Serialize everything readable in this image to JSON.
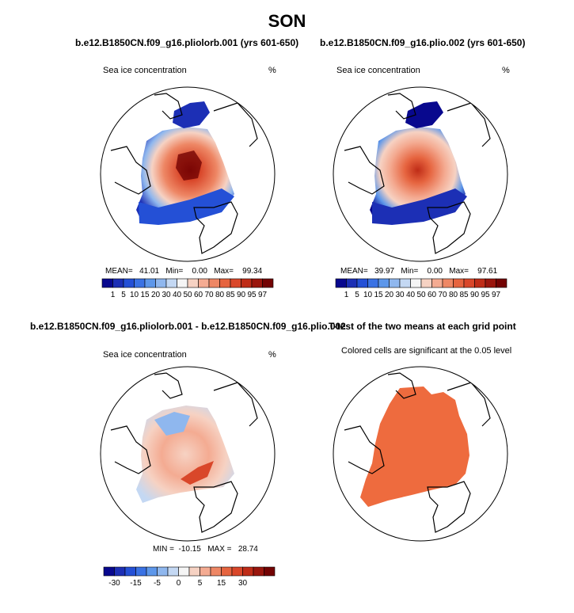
{
  "figure": {
    "season_title": "SON",
    "panels": [
      {
        "title": "b.e12.B1850CN.f09_g16.pliolorb.001 (yrs 601-650)",
        "variable": "Sea ice concentration",
        "units": "%",
        "stats": "MEAN=   41.01   Min=    0.00   Max=    99.34",
        "colorbar_labels": [
          "1",
          "5",
          "10",
          "15",
          "20",
          "30",
          "40",
          "50",
          "60",
          "70",
          "80",
          "85",
          "90",
          "95",
          "97"
        ],
        "colorbar_colors": [
          "#08088e",
          "#1c2fb5",
          "#2450d6",
          "#3a72e4",
          "#5d97ea",
          "#8fb7ee",
          "#c4d8f3",
          "#f5f5f5",
          "#f6d2c3",
          "#f4ab92",
          "#ee8765",
          "#e6643f",
          "#d9472a",
          "#bf2c17",
          "#9a160d",
          "#730303"
        ]
      },
      {
        "title": "b.e12.B1850CN.f09_g16.plio.002 (yrs 601-650)",
        "variable": "Sea ice concentration",
        "units": "%",
        "stats": "MEAN=   39.97   Min=    0.00   Max=    97.61",
        "colorbar_labels": [
          "1",
          "5",
          "10",
          "15",
          "20",
          "30",
          "40",
          "50",
          "60",
          "70",
          "80",
          "85",
          "90",
          "95",
          "97"
        ],
        "colorbar_colors": [
          "#08088e",
          "#1c2fb5",
          "#2450d6",
          "#3a72e4",
          "#5d97ea",
          "#8fb7ee",
          "#c4d8f3",
          "#f5f5f5",
          "#f6d2c3",
          "#f4ab92",
          "#ee8765",
          "#e6643f",
          "#d9472a",
          "#bf2c17",
          "#9a160d",
          "#730303"
        ]
      },
      {
        "title": "b.e12.B1850CN.f09_g16.pliolorb.001 - b.e12.B1850CN.f09_g16.plio.002",
        "variable": "Sea ice concentration",
        "units": "%",
        "stats": "MIN =  -10.15   MAX =   28.74",
        "colorbar_labels": [
          "-30",
          "-15",
          "-5",
          "0",
          "5",
          "15",
          "30"
        ],
        "colorbar_label_slots": [
          1,
          3,
          5,
          7,
          9,
          11,
          13
        ],
        "colorbar_colors": [
          "#08088e",
          "#1c2fb5",
          "#2450d6",
          "#3a72e4",
          "#5d97ea",
          "#8fb7ee",
          "#c4d8f3",
          "#f5f5f5",
          "#f6d2c3",
          "#f4ab92",
          "#ee8765",
          "#e6643f",
          "#d9472a",
          "#bf2c17",
          "#9a160d",
          "#730303"
        ]
      },
      {
        "title": "T-test of the two means at each grid point",
        "subtitle": "Colored cells are significant at the 0.05 level",
        "significance_color": "#ee6b3e"
      }
    ]
  },
  "chart_data": [
    {
      "type": "heatmap",
      "title": "b.e12.B1850CN.f09_g16.pliolorb.001 (yrs 601-650)",
      "variable": "Sea ice concentration",
      "units": "%",
      "projection": "north polar stereographic",
      "mean": 41.01,
      "min": 0.0,
      "max": 99.34,
      "contour_levels": [
        1,
        5,
        10,
        15,
        20,
        30,
        40,
        50,
        60,
        70,
        80,
        85,
        90,
        95,
        97
      ]
    },
    {
      "type": "heatmap",
      "title": "b.e12.B1850CN.f09_g16.plio.002 (yrs 601-650)",
      "variable": "Sea ice concentration",
      "units": "%",
      "projection": "north polar stereographic",
      "mean": 39.97,
      "min": 0.0,
      "max": 97.61,
      "contour_levels": [
        1,
        5,
        10,
        15,
        20,
        30,
        40,
        50,
        60,
        70,
        80,
        85,
        90,
        95,
        97
      ]
    },
    {
      "type": "heatmap",
      "title": "b.e12.B1850CN.f09_g16.pliolorb.001 - b.e12.B1850CN.f09_g16.plio.002",
      "variable": "Sea ice concentration",
      "units": "%",
      "projection": "north polar stereographic",
      "min": -10.15,
      "max": 28.74,
      "labeled_levels": [
        -30,
        -15,
        -5,
        0,
        5,
        15,
        30
      ]
    },
    {
      "type": "heatmap",
      "title": "T-test of the two means at each grid point",
      "subtitle": "Colored cells are significant at the 0.05 level",
      "projection": "north polar stereographic",
      "significance_level": 0.05
    }
  ]
}
